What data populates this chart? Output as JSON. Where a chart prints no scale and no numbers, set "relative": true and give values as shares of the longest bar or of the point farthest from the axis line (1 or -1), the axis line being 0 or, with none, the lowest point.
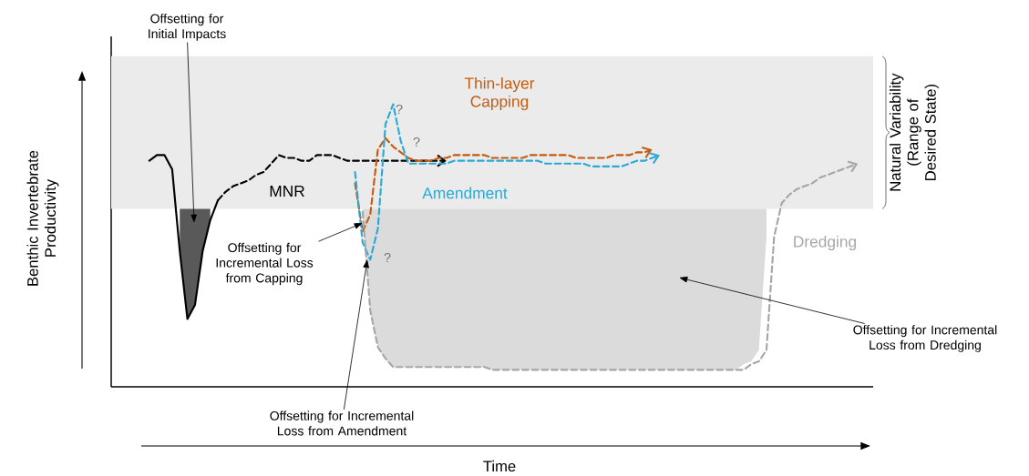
{
  "chart_data": {
    "type": "line",
    "relative": true,
    "xlabel": "Time",
    "ylabel": "Benthic Invertebrate Productivity",
    "categories": [
      null,
      null,
      null,
      null,
      null,
      null,
      null,
      null,
      null,
      null,
      null,
      null,
      null,
      null,
      null,
      null,
      null,
      null,
      null,
      null,
      null,
      null,
      null,
      null,
      null,
      null,
      null,
      null,
      null,
      null,
      null,
      null,
      null,
      null,
      null,
      null,
      null,
      null,
      null,
      null,
      null,
      null,
      null,
      null,
      null,
      null,
      null,
      null,
      null,
      null,
      null,
      null,
      null,
      null,
      null,
      null,
      null,
      null,
      null,
      null,
      null,
      null,
      null,
      null,
      null,
      null,
      null,
      null,
      null,
      null,
      null,
      null,
      null,
      null,
      null,
      null,
      null,
      null,
      null,
      null,
      null,
      null,
      null,
      null,
      null,
      null,
      null,
      null,
      null,
      null,
      null,
      null,
      null,
      null,
      null,
      null,
      null,
      null,
      null,
      null,
      null
    ],
    "series": [
      {
        "color": "#000000",
        "line_style": "solid",
        "values": [
          null,
          null,
          null,
          null,
          null,
          0.8,
          0.82,
          0.82,
          0.77,
          0.48,
          0.24,
          0.29,
          0.48,
          0.59,
          0.66,
          null,
          null,
          null,
          null,
          null,
          null,
          null,
          null,
          null,
          null,
          null,
          null,
          null,
          null,
          null,
          null,
          null,
          null,
          null,
          null,
          null,
          null,
          null,
          null,
          null,
          null,
          null,
          null,
          null,
          null,
          null,
          null,
          null,
          null,
          null,
          null,
          null,
          null,
          null,
          null,
          null,
          null,
          null,
          null,
          null,
          null,
          null,
          null,
          null,
          null,
          null,
          null,
          null,
          null,
          null,
          null,
          null,
          null,
          null,
          null,
          null,
          null,
          null,
          null,
          null,
          null,
          null,
          null,
          null,
          null,
          null,
          null,
          null,
          null,
          null,
          null,
          null,
          null,
          null,
          null,
          null,
          null,
          null,
          null,
          null,
          null
        ],
        "lower": [
          null,
          null,
          null,
          null,
          null,
          null,
          null,
          null,
          null,
          0.48,
          0.24,
          0.29,
          0.48,
          0.59,
          null,
          null,
          null,
          null,
          null,
          null,
          null,
          null,
          null,
          null,
          null,
          null,
          null,
          null,
          null,
          null,
          null,
          null,
          null,
          null,
          null,
          null,
          null,
          null,
          null,
          null,
          null,
          null,
          null,
          null,
          null,
          null,
          null,
          null,
          null,
          null,
          null,
          null,
          null,
          null,
          null,
          null,
          null,
          null,
          null,
          null,
          null,
          null,
          null,
          null,
          null,
          null,
          null,
          null,
          null,
          null,
          null,
          null,
          null,
          null,
          null,
          null,
          null,
          null,
          null,
          null,
          null,
          null,
          null,
          null,
          null,
          null,
          null,
          null,
          null,
          null,
          null,
          null,
          null,
          null,
          null,
          null,
          null,
          null,
          null,
          null,
          null
        ],
        "upper": [
          null,
          null,
          null,
          null,
          null,
          null,
          null,
          null,
          null,
          0.63,
          0.63,
          0.63,
          0.63,
          0.63,
          null,
          null,
          null,
          null,
          null,
          null,
          null,
          null,
          null,
          null,
          null,
          null,
          null,
          null,
          null,
          null,
          null,
          null,
          null,
          null,
          null,
          null,
          null,
          null,
          null,
          null,
          null,
          null,
          null,
          null,
          null,
          null,
          null,
          null,
          null,
          null,
          null,
          null,
          null,
          null,
          null,
          null,
          null,
          null,
          null,
          null,
          null,
          null,
          null,
          null,
          null,
          null,
          null,
          null,
          null,
          null,
          null,
          null,
          null,
          null,
          null,
          null,
          null,
          null,
          null,
          null,
          null,
          null,
          null,
          null,
          null,
          null,
          null,
          null,
          null,
          null,
          null,
          null,
          null,
          null,
          null,
          null,
          null,
          null,
          null,
          null,
          null
        ]
      },
      {
        "name": "MNR",
        "color": "#000000",
        "line_style": "dashed",
        "values": [
          null,
          null,
          null,
          null,
          null,
          null,
          null,
          null,
          null,
          null,
          null,
          null,
          null,
          null,
          0.66,
          0.69,
          0.71,
          0.72,
          0.73,
          0.75,
          0.76,
          0.79,
          0.82,
          0.81,
          0.81,
          0.8,
          0.8,
          0.82,
          0.82,
          0.82,
          0.81,
          0.8,
          0.8,
          0.8,
          0.8,
          0.8,
          0.8,
          0.8,
          0.8,
          0.8,
          0.8,
          0.8,
          0.8,
          0.8,
          0.8,
          null,
          null,
          null,
          null,
          null,
          null,
          null,
          null,
          null,
          null,
          null,
          null,
          null,
          null,
          null,
          null,
          null,
          null,
          null,
          null,
          null,
          null,
          null,
          null,
          null,
          null,
          null,
          null,
          null,
          null,
          null,
          null,
          null,
          null,
          null,
          null,
          null,
          null,
          null,
          null,
          null,
          null,
          null,
          null,
          null,
          null,
          null,
          null,
          null,
          null,
          null,
          null,
          null,
          null,
          null,
          null
        ]
      },
      {
        "name": "Thin-layer Capping",
        "color": "#c55a11",
        "line_style": "dashed",
        "values": [
          null,
          null,
          null,
          null,
          null,
          null,
          null,
          null,
          null,
          null,
          null,
          null,
          null,
          null,
          null,
          null,
          null,
          null,
          null,
          null,
          null,
          null,
          null,
          null,
          null,
          null,
          null,
          null,
          null,
          null,
          null,
          null,
          0.72,
          0.55,
          0.61,
          0.84,
          0.88,
          0.85,
          0.83,
          0.81,
          0.8,
          0.8,
          0.8,
          0.81,
          0.81,
          0.82,
          0.82,
          0.82,
          0.82,
          0.82,
          0.81,
          0.81,
          0.81,
          0.81,
          0.81,
          0.82,
          0.82,
          0.82,
          0.82,
          0.82,
          0.82,
          0.81,
          0.81,
          0.81,
          0.81,
          0.81,
          0.82,
          0.82,
          0.82,
          0.83,
          0.83,
          0.84,
          null,
          null,
          null,
          null,
          null,
          null,
          null,
          null,
          null,
          null,
          null,
          null,
          null,
          null,
          null,
          null,
          null,
          null,
          null,
          null,
          null,
          null,
          null,
          null,
          null,
          null,
          null,
          null,
          null
        ]
      },
      {
        "name": "Amendment",
        "color": "#2aa9d6",
        "line_style": "dashed",
        "values": [
          null,
          null,
          null,
          null,
          null,
          null,
          null,
          null,
          null,
          null,
          null,
          null,
          null,
          null,
          null,
          null,
          null,
          null,
          null,
          null,
          null,
          null,
          null,
          null,
          null,
          null,
          null,
          null,
          null,
          null,
          null,
          null,
          0.76,
          0.51,
          0.45,
          0.56,
          0.93,
          1.0,
          0.87,
          0.79,
          0.79,
          0.79,
          0.79,
          0.79,
          0.79,
          0.8,
          0.8,
          0.8,
          0.8,
          0.8,
          0.8,
          0.8,
          0.8,
          0.8,
          0.8,
          0.8,
          0.8,
          0.79,
          0.79,
          0.79,
          0.79,
          0.79,
          0.79,
          0.78,
          0.78,
          0.78,
          0.78,
          0.78,
          0.79,
          0.8,
          0.8,
          0.81,
          0.82,
          null,
          null,
          null,
          null,
          null,
          null,
          null,
          null,
          null,
          null,
          null,
          null,
          null,
          null,
          null,
          null,
          null,
          null,
          null,
          null,
          null,
          null,
          null,
          null,
          null,
          null,
          null,
          null
        ]
      },
      {
        "name": "Dredging",
        "color": "#a6a6a6",
        "line_style": "dashed",
        "values": [
          null,
          null,
          null,
          null,
          null,
          null,
          null,
          null,
          null,
          null,
          null,
          null,
          null,
          null,
          null,
          null,
          null,
          null,
          null,
          null,
          null,
          null,
          null,
          null,
          null,
          null,
          null,
          null,
          null,
          null,
          null,
          null,
          null,
          0.62,
          0.27,
          0.14,
          0.1,
          0.07,
          0.07,
          0.07,
          0.07,
          0.07,
          0.07,
          0.07,
          0.07,
          0.07,
          0.07,
          0.07,
          0.07,
          0.07,
          0.06,
          0.06,
          0.06,
          0.06,
          0.06,
          0.06,
          0.06,
          0.06,
          0.06,
          0.06,
          0.06,
          0.06,
          0.06,
          0.06,
          0.06,
          0.06,
          0.06,
          0.06,
          0.06,
          0.06,
          0.06,
          0.06,
          0.06,
          0.06,
          0.06,
          0.06,
          0.06,
          0.06,
          0.06,
          0.06,
          0.06,
          0.06,
          0.06,
          0.06,
          0.08,
          0.09,
          0.13,
          0.53,
          0.65,
          0.68,
          0.7,
          0.71,
          0.72,
          0.74,
          0.75,
          0.76,
          0.77,
          0.78,
          0.79,
          null,
          null
        ],
        "lower": [
          null,
          null,
          null,
          null,
          null,
          null,
          null,
          null,
          null,
          null,
          null,
          null,
          null,
          null,
          null,
          null,
          null,
          null,
          null,
          null,
          null,
          null,
          null,
          null,
          null,
          null,
          null,
          null,
          null,
          null,
          null,
          null,
          null,
          0.62,
          0.27,
          0.14,
          0.1,
          0.07,
          0.07,
          0.07,
          0.07,
          0.07,
          0.07,
          0.07,
          0.07,
          0.07,
          0.07,
          0.07,
          0.07,
          0.07,
          0.06,
          0.06,
          0.06,
          0.06,
          0.06,
          0.06,
          0.06,
          0.06,
          0.06,
          0.06,
          0.06,
          0.06,
          0.06,
          0.06,
          0.06,
          0.06,
          0.06,
          0.06,
          0.06,
          0.06,
          0.06,
          0.06,
          0.06,
          0.06,
          0.06,
          0.06,
          0.06,
          0.06,
          0.06,
          0.06,
          0.06,
          0.06,
          0.06,
          0.08,
          0.09,
          0.13,
          0.53,
          null,
          null,
          null,
          null,
          null,
          null,
          null,
          null,
          null,
          null,
          null,
          null,
          null,
          null
        ],
        "upper": [
          null,
          null,
          null,
          null,
          null,
          null,
          null,
          null,
          null,
          null,
          null,
          null,
          null,
          null,
          null,
          null,
          null,
          null,
          null,
          null,
          null,
          null,
          null,
          null,
          null,
          null,
          null,
          null,
          null,
          null,
          null,
          null,
          null,
          0.63,
          0.63,
          0.63,
          0.63,
          0.63,
          0.63,
          0.63,
          0.63,
          0.63,
          0.63,
          0.63,
          0.63,
          0.63,
          0.63,
          0.63,
          0.63,
          0.63,
          0.63,
          0.63,
          0.63,
          0.63,
          0.63,
          0.63,
          0.63,
          0.63,
          0.63,
          0.63,
          0.63,
          0.63,
          0.63,
          0.63,
          0.63,
          0.63,
          0.63,
          0.63,
          0.63,
          0.63,
          0.63,
          0.63,
          0.63,
          0.63,
          0.63,
          0.63,
          0.63,
          0.63,
          0.63,
          0.63,
          0.63,
          0.63,
          0.63,
          0.63,
          0.63,
          0.63,
          0.63,
          null,
          null,
          null,
          null,
          null,
          null,
          null,
          null,
          null,
          null,
          null,
          null,
          null,
          null
        ]
      }
    ],
    "bands": [
      {
        "axis": "y",
        "from": 0.63,
        "to": 1.17,
        "label": "Natural Variability (Range of Desired State)",
        "color": "#ebebeb"
      }
    ],
    "annotations": [
      "Offsetting for Initial Impacts",
      "Offsetting for Incremental Loss from Capping",
      "Offsetting for Incremental Loss from Amendment",
      "Offsetting for Incremental Loss from Dredging",
      "?",
      "?",
      "?"
    ]
  }
}
